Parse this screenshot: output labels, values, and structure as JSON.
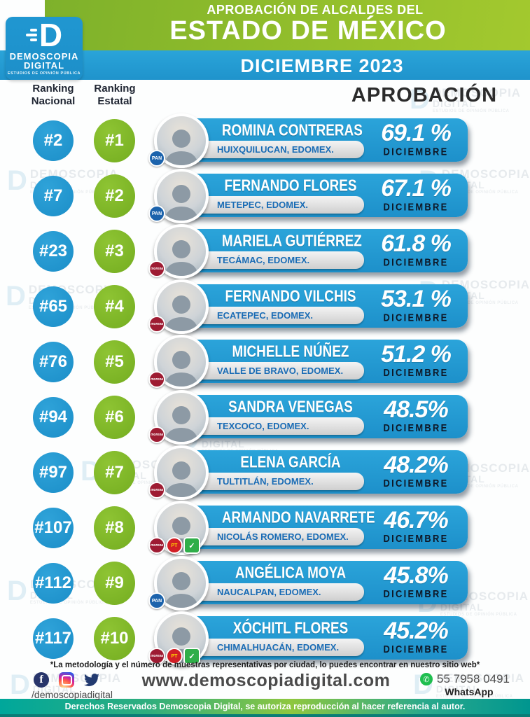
{
  "header": {
    "kicker": "APROBACIÓN DE ALCALDES DEL",
    "title": "ESTADO DE MÉXICO",
    "period": "DICIEMBRE 2023",
    "logo": {
      "initial": "D",
      "line1": "DEMOSCOPIA",
      "line2": "DIGITAL",
      "tagline": "ESTUDIOS DE OPINIÓN PÚBLICA"
    }
  },
  "table": {
    "col_national_l1": "Ranking",
    "col_national_l2": "Nacional",
    "col_state_l1": "Ranking",
    "col_state_l2": "Estatal",
    "col_approval": "APROBACIÓN"
  },
  "rows": [
    {
      "national": "#2",
      "state": "#1",
      "name": "ROMINA CONTRERAS",
      "municipality": "HUIXQUILUCAN, EDOMEX.",
      "approval": "69.1 %",
      "month": "DICIEMBRE",
      "parties": [
        "PAN"
      ]
    },
    {
      "national": "#7",
      "state": "#2",
      "name": "FERNANDO FLORES",
      "municipality": "METEPEC, EDOMEX.",
      "approval": "67.1 %",
      "month": "DICIEMBRE",
      "parties": [
        "PAN"
      ]
    },
    {
      "national": "#23",
      "state": "#3",
      "name": "MARIELA GUTIÉRREZ",
      "municipality": "TECÁMAC, EDOMEX.",
      "approval": "61.8 %",
      "month": "DICIEMBRE",
      "parties": [
        "MORENA"
      ]
    },
    {
      "national": "#65",
      "state": "#4",
      "name": "FERNANDO VILCHIS",
      "municipality": "ECATEPEC, EDOMEX.",
      "approval": "53.1 %",
      "month": "DICIEMBRE",
      "parties": [
        "MORENA"
      ]
    },
    {
      "national": "#76",
      "state": "#5",
      "name": "MICHELLE NÚÑEZ",
      "municipality": "VALLE DE BRAVO, EDOMEX.",
      "approval": "51.2 %",
      "month": "DICIEMBRE",
      "parties": [
        "MORENA"
      ]
    },
    {
      "national": "#94",
      "state": "#6",
      "name": "SANDRA VENEGAS",
      "municipality": "TEXCOCO, EDOMEX.",
      "approval": "48.5%",
      "month": "DICIEMBRE",
      "parties": [
        "MORENA"
      ]
    },
    {
      "national": "#97",
      "state": "#7",
      "name": "ELENA GARCÍA",
      "municipality": "TULTITLÁN, EDOMEX.",
      "approval": "48.2%",
      "month": "DICIEMBRE",
      "parties": [
        "MORENA"
      ]
    },
    {
      "national": "#107",
      "state": "#8",
      "name": "ARMANDO NAVARRETE",
      "municipality": "NICOLÁS ROMERO, EDOMEX.",
      "approval": "46.7%",
      "month": "DICIEMBRE",
      "parties": [
        "MORENA",
        "PT",
        "PVEM"
      ]
    },
    {
      "national": "#112",
      "state": "#9",
      "name": "ANGÉLICA MOYA",
      "municipality": "NAUCALPAN, EDOMEX.",
      "approval": "45.8%",
      "month": "DICIEMBRE",
      "parties": [
        "PAN"
      ]
    },
    {
      "national": "#117",
      "state": "#10",
      "name": "XÓCHITL FLORES",
      "municipality": "CHIMALHUACÁN, EDOMEX.",
      "approval": "45.2%",
      "month": "DICIEMBRE",
      "parties": [
        "MORENA",
        "PT",
        "PVEM"
      ]
    }
  ],
  "parties": {
    "PAN": {
      "label": "PAN",
      "color": "#1c63ac"
    },
    "MORENA": {
      "label": "morena",
      "color": "#9e1b32"
    },
    "PT": {
      "label": "PT",
      "color": "#d21f26"
    },
    "PVEM": {
      "label": "✓",
      "color": "#2fae49"
    }
  },
  "watermark": {
    "initial": "D",
    "line1": "DEMOSCOPIA",
    "line2": "DIGITAL",
    "line3": "ESTUDIOS DE OPINIÓN PÚBLICA"
  },
  "footer": {
    "note": "*La metodología y el número de muestras representativas por ciudad, lo puedes encontrar en nuestro sitio web*",
    "social_handle": "/demoscopiadigital",
    "website": "www.demoscopiadigital.com",
    "phone": "55 7958 0491",
    "phone_label": "WhatsApp",
    "copyright": "Derechos Reservados Demoscopia Digital, se autoriza reproducción al hacer referencia al autor."
  },
  "colors": {
    "banner_green": "#8fbc2b",
    "band_blue": "#229cd4",
    "bar_blue": "#2099d4",
    "circle_blue": "#1e93cd",
    "circle_green": "#7cb928",
    "municipality_text": "#1a6cb5",
    "month_text": "#0e1726",
    "whatsapp_green": "#1fbe4f",
    "bottom_bar_teal": "#00a79b",
    "bottom_bar_green": "#8ec73f"
  }
}
